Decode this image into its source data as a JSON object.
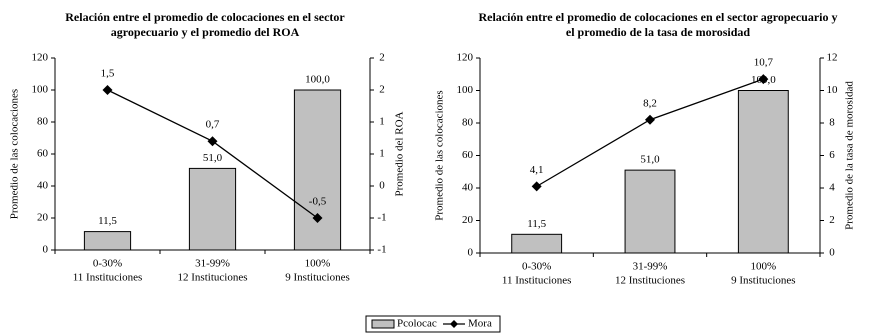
{
  "chart_data": [
    {
      "type": "combo",
      "title": "Relación entre el promedio  de colocaciones en el sector agropecuario y el promedio del ROA",
      "categories": [
        "0-30%",
        "31-99%",
        "100%"
      ],
      "category_sublabels": [
        "11 Instituciones",
        "12  Instituciones",
        "9  Instituciones"
      ],
      "y_label": "Promedio de las colocaciones",
      "y2_label": "Promedio del ROA",
      "ylim": [
        0,
        120
      ],
      "yticks": [
        0,
        20,
        40,
        60,
        80,
        100,
        120
      ],
      "y2lim": [
        -1,
        2
      ],
      "y2ticks": [
        -1,
        {
          "value": -0.5,
          "label": "-1"
        },
        0,
        {
          "value": 0.5,
          "label": "1"
        },
        1,
        {
          "value": 1.5,
          "label": "2"
        },
        2
      ],
      "series": [
        {
          "type": "bar",
          "color": "#c0c0c0",
          "values": [
            11.5,
            51.0,
            100.0
          ],
          "value_labels": [
            "11,5",
            "51,0",
            "100,0"
          ]
        },
        {
          "type": "line",
          "axis": "y2",
          "color": "#000000",
          "marker": "diamond",
          "values": [
            1.5,
            0.7,
            -0.5
          ],
          "value_labels": [
            "1,5",
            "0,7",
            "-0,5"
          ]
        }
      ]
    },
    {
      "type": "combo",
      "title": "Relación entre el promedio de colocaciones en el sector agropecuario y el promedio de la tasa de morosidad",
      "categories": [
        "0-30%",
        "31-99%",
        "100%"
      ],
      "category_sublabels": [
        "11 Instituciones",
        "12 Instituciones",
        "9  Instituciones"
      ],
      "y_label": "Promedio de las colocaciones",
      "y2_label": "Promedio de la tasa de morosidad",
      "ylim": [
        0,
        120
      ],
      "yticks": [
        0,
        20,
        40,
        60,
        80,
        100,
        120
      ],
      "y2lim": [
        0,
        12
      ],
      "y2ticks": [
        0,
        2,
        4,
        6,
        8,
        10,
        12
      ],
      "series": [
        {
          "name": "Pcolocac",
          "type": "bar",
          "color": "#c0c0c0",
          "values": [
            11.5,
            51.0,
            100.0
          ],
          "value_labels": [
            "11,5",
            "51,0",
            "100,0"
          ]
        },
        {
          "name": "Mora",
          "type": "line",
          "axis": "y2",
          "color": "#000000",
          "marker": "diamond",
          "values": [
            4.1,
            8.2,
            10.7
          ],
          "value_labels": [
            "4,1",
            "8,2",
            "10,7"
          ]
        }
      ]
    }
  ]
}
